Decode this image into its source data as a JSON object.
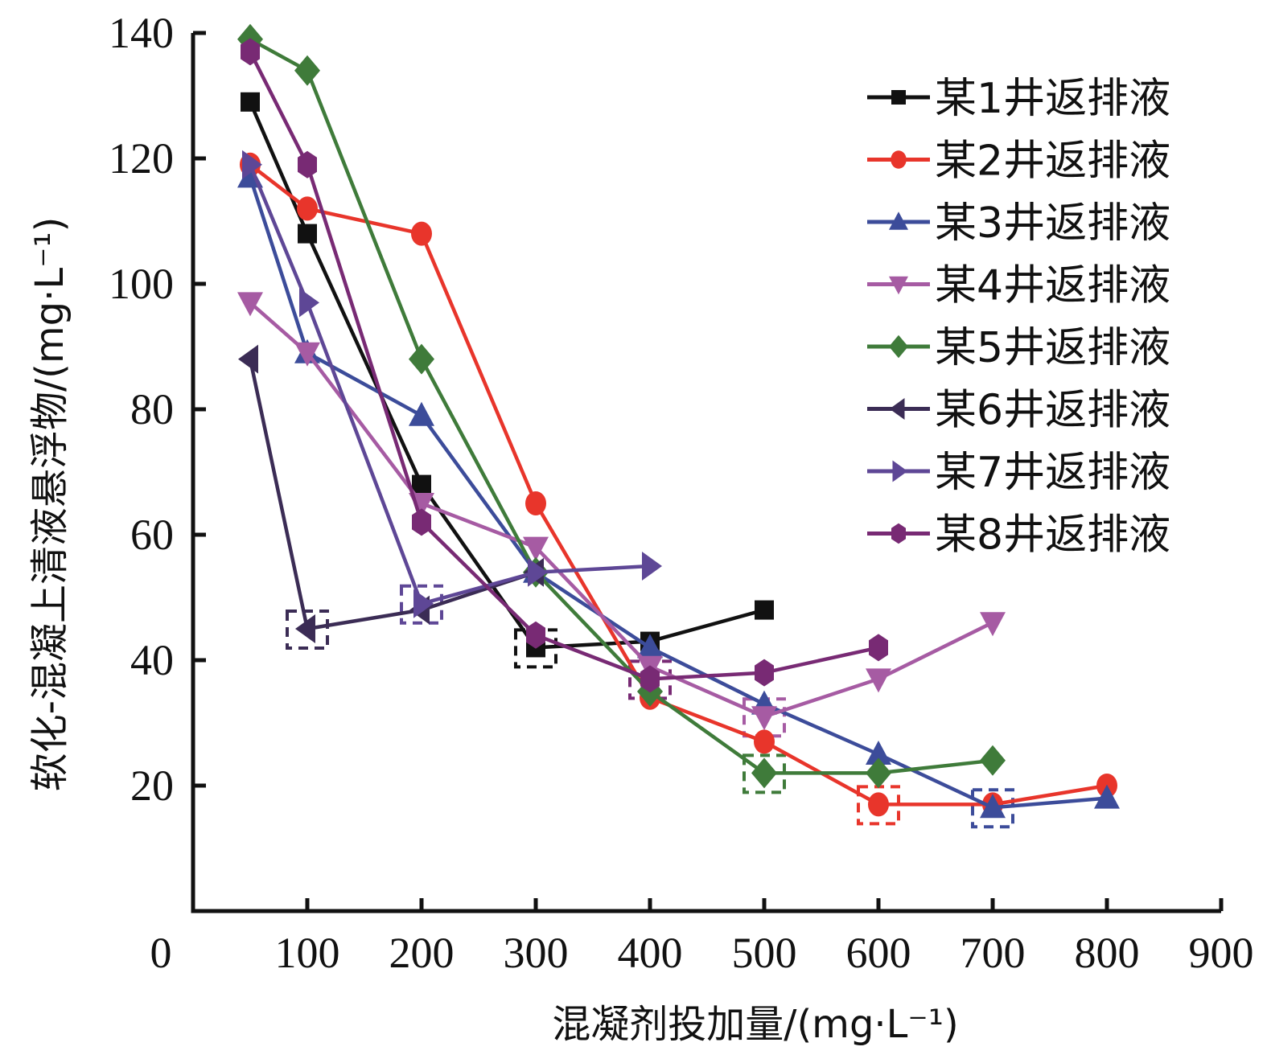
{
  "chart_data": {
    "type": "line",
    "title": "",
    "xlabel": "混凝剂投加量/(mg·L⁻¹)",
    "ylabel": "软化-混凝上清液悬浮物/(mg·L⁻¹)",
    "xlim": [
      0,
      900
    ],
    "ylim": [
      0,
      140
    ],
    "xticks": [
      0,
      100,
      200,
      300,
      400,
      500,
      600,
      700,
      800,
      900
    ],
    "yticks": [
      20,
      40,
      60,
      80,
      100,
      120,
      140
    ],
    "x_origin_label": "0",
    "grid": false,
    "legend_position": "top-right",
    "series": [
      {
        "name": "某1井返排液",
        "color": "#111111",
        "marker": "square",
        "x": [
          50,
          100,
          200,
          300,
          400,
          500
        ],
        "y": [
          129,
          108,
          68,
          42,
          43,
          48
        ],
        "highlight_x": 300
      },
      {
        "name": "某2井返排液",
        "color": "#e8352b",
        "marker": "circle",
        "x": [
          50,
          100,
          200,
          300,
          400,
          500,
          600,
          700,
          800
        ],
        "y": [
          119,
          112,
          108,
          65,
          34,
          27,
          17,
          17,
          20
        ],
        "highlight_x": 600
      },
      {
        "name": "某3井返排液",
        "color": "#3c4c9a",
        "marker": "triangle-up",
        "x": [
          50,
          100,
          200,
          300,
          400,
          500,
          600,
          700,
          800
        ],
        "y": [
          117,
          89,
          79,
          54,
          42,
          33,
          25,
          16.5,
          18
        ],
        "highlight_x": 700
      },
      {
        "name": "某4井返排液",
        "color": "#a65ba3",
        "marker": "triangle-down",
        "x": [
          50,
          100,
          200,
          300,
          400,
          500,
          600,
          700
        ],
        "y": [
          97,
          89,
          65,
          58,
          39,
          31,
          37,
          46
        ],
        "highlight_x": 500
      },
      {
        "name": "某5井返排液",
        "color": "#3f7b3a",
        "marker": "diamond",
        "x": [
          50,
          100,
          200,
          300,
          400,
          500,
          600,
          700
        ],
        "y": [
          139,
          134,
          88,
          54,
          35,
          22,
          22,
          24
        ],
        "highlight_x": 500
      },
      {
        "name": "某6井返排液",
        "color": "#3b2c55",
        "marker": "triangle-left",
        "x": [
          50,
          100,
          200,
          300
        ],
        "y": [
          88,
          45,
          48,
          54
        ],
        "highlight_x": 100
      },
      {
        "name": "某7井返排液",
        "color": "#5e4796",
        "marker": "triangle-right",
        "x": [
          50,
          100,
          200,
          300,
          400
        ],
        "y": [
          119,
          97,
          49,
          54,
          55
        ],
        "highlight_x": 200
      },
      {
        "name": "某8井返排液",
        "color": "#782a74",
        "marker": "hexagon",
        "x": [
          50,
          100,
          200,
          300,
          400,
          500,
          600
        ],
        "y": [
          137,
          119,
          62,
          44,
          37,
          38,
          42
        ],
        "highlight_x": 400
      }
    ]
  }
}
